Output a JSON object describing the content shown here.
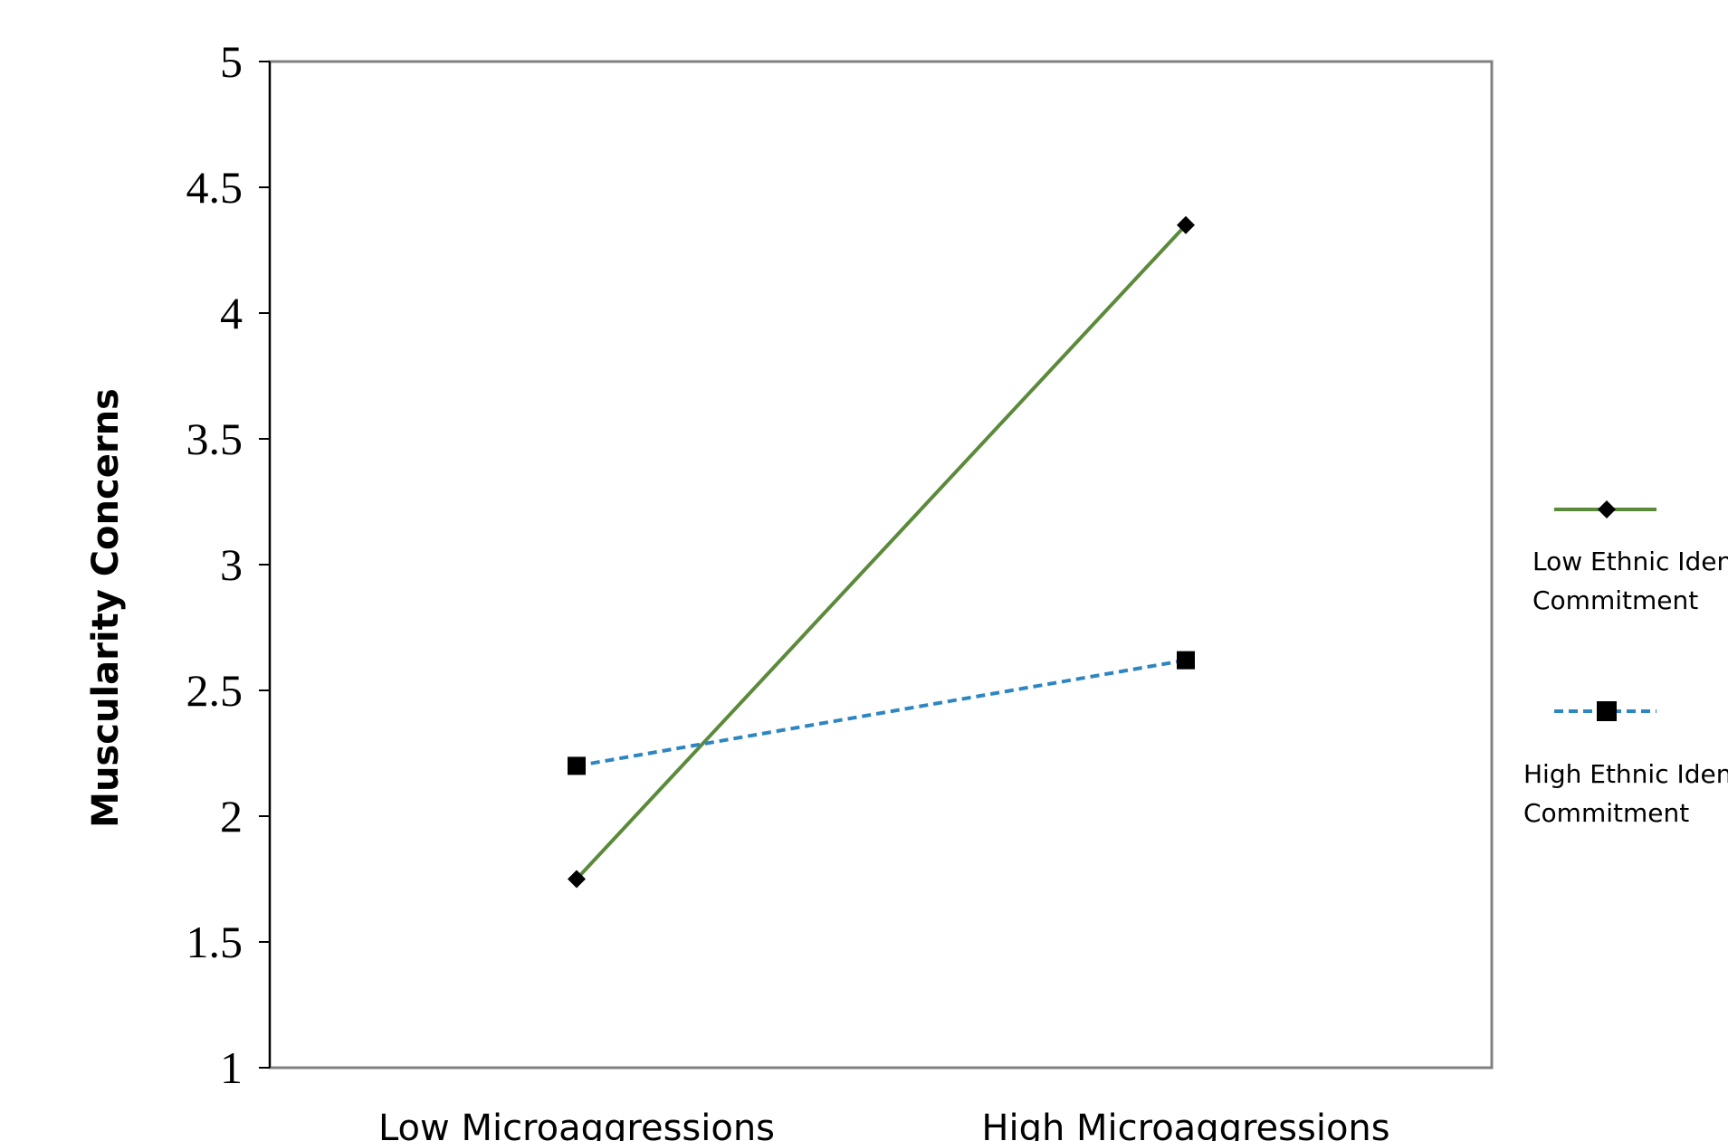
{
  "chart_data": {
    "type": "line",
    "title": "",
    "xlabel": "",
    "ylabel": "Muscularity Concerns",
    "categories": [
      "Low Microaggressions",
      "High Microaggressions"
    ],
    "ylim": [
      1,
      5
    ],
    "yticks": [
      "1",
      "1.5",
      "2",
      "2.5",
      "3",
      "3.5",
      "4",
      "4.5",
      "5"
    ],
    "grid": false,
    "legend_position": "right",
    "series": [
      {
        "name_line1": "Low Ethnic Identity",
        "name_line2": "Commitment",
        "values": [
          1.75,
          4.35
        ],
        "color": "#5a8a3a",
        "line_style": "solid",
        "marker": "diamond"
      },
      {
        "name_line1": "High Ethnic Identity",
        "name_line2": "Commitment",
        "values": [
          2.2,
          2.62
        ],
        "color": "#2e86c1",
        "line_style": "dashed",
        "marker": "square"
      }
    ]
  }
}
